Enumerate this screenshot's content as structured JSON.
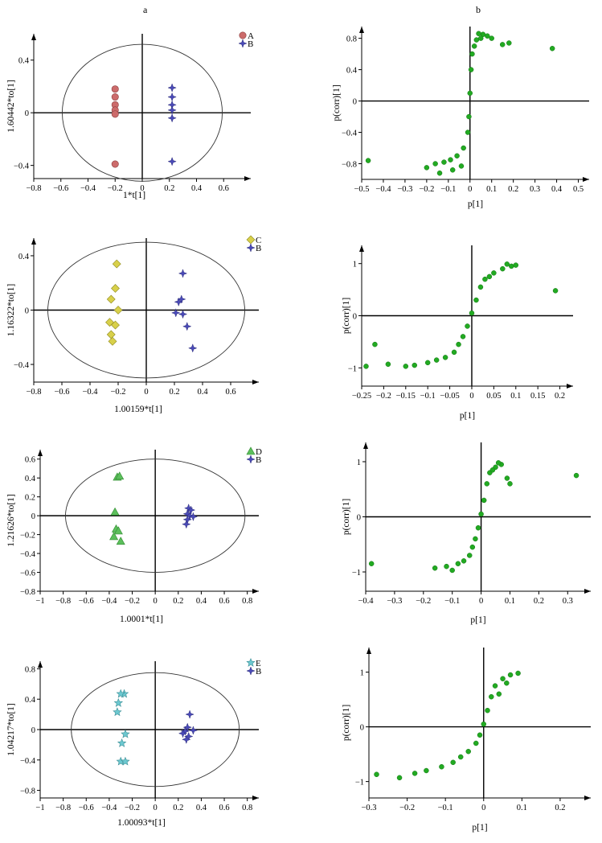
{
  "panel_labels": [
    "a",
    "b"
  ],
  "chart_data": [
    {
      "type": "scatter",
      "kind": "opls-da-score",
      "xlabel": "1*t[1]",
      "ylabel": "1.60442*to[1]",
      "xlim": [
        -0.8,
        0.8
      ],
      "ylim": [
        -0.5,
        0.6
      ],
      "xticks": [
        -0.8,
        -0.6,
        -0.4,
        -0.2,
        0,
        0.2,
        0.4,
        0.6
      ],
      "xticklabels": [
        "−0.8",
        "−0.6",
        "−0.4",
        "−0.2",
        "0",
        "0.2",
        "0.4",
        "0.6"
      ],
      "yticks": [
        -0.4,
        0,
        0.4
      ],
      "yticklabels": [
        "−0.4",
        "0",
        "0.4"
      ],
      "ellipse": {
        "cx": 0,
        "cy": 0,
        "rx": 0.59,
        "ry": 0.52
      },
      "legend_position": "top-right",
      "series": [
        {
          "name": "A",
          "marker": "circle",
          "color": "#cc6b6b",
          "points": [
            [
              -0.2,
              0.18
            ],
            [
              -0.2,
              0.12
            ],
            [
              -0.2,
              0.06
            ],
            [
              -0.2,
              0.02
            ],
            [
              -0.2,
              -0.01
            ],
            [
              -0.2,
              -0.39
            ]
          ]
        },
        {
          "name": "B",
          "marker": "cross",
          "color": "#4a4ab8",
          "points": [
            [
              0.22,
              0.19
            ],
            [
              0.22,
              0.12
            ],
            [
              0.22,
              0.06
            ],
            [
              0.22,
              0.02
            ],
            [
              0.22,
              -0.04
            ],
            [
              0.22,
              -0.37
            ]
          ]
        }
      ]
    },
    {
      "type": "scatter",
      "kind": "s-plot",
      "xlabel": "p[1]",
      "ylabel": "p(corr)[1]",
      "xlim": [
        -0.5,
        0.55
      ],
      "ylim": [
        -1.0,
        0.95
      ],
      "xticks": [
        -0.5,
        -0.4,
        -0.3,
        -0.2,
        -0.1,
        0,
        0.1,
        0.2,
        0.3,
        0.4,
        0.5
      ],
      "xticklabels": [
        "−0.5",
        "−0.4",
        "−0.3",
        "−0.2",
        "−0.1",
        "0",
        "0.1",
        "0.2",
        "0.3",
        "0.4",
        "0.5"
      ],
      "yticks": [
        -0.8,
        -0.4,
        0,
        0.4,
        0.8
      ],
      "yticklabels": [
        "−0.8",
        "−0.4",
        "0",
        "0.4",
        "0.8"
      ],
      "series": [
        {
          "marker": "dot",
          "color": "#22aa22",
          "points": [
            [
              -0.47,
              -0.76
            ],
            [
              0.38,
              0.67
            ],
            [
              0.18,
              0.74
            ],
            [
              0.15,
              0.72
            ],
            [
              0.1,
              0.8
            ],
            [
              0.08,
              0.83
            ],
            [
              0.06,
              0.85
            ],
            [
              0.05,
              0.8
            ],
            [
              0.04,
              0.86
            ],
            [
              0.03,
              0.78
            ],
            [
              0.02,
              0.7
            ],
            [
              0.01,
              0.6
            ],
            [
              0.005,
              0.4
            ],
            [
              0,
              0.1
            ],
            [
              -0.005,
              -0.2
            ],
            [
              -0.01,
              -0.4
            ],
            [
              -0.03,
              -0.6
            ],
            [
              -0.06,
              -0.7
            ],
            [
              -0.09,
              -0.75
            ],
            [
              -0.12,
              -0.78
            ],
            [
              -0.16,
              -0.8
            ],
            [
              -0.2,
              -0.85
            ],
            [
              -0.14,
              -0.92
            ],
            [
              -0.08,
              -0.88
            ],
            [
              -0.04,
              -0.83
            ]
          ]
        }
      ]
    },
    {
      "type": "scatter",
      "kind": "opls-da-score",
      "xlabel": "1.00159*t[1]",
      "ylabel": "1.16322*to[1]",
      "xlim": [
        -0.8,
        0.8
      ],
      "ylim": [
        -0.53,
        0.53
      ],
      "xticks": [
        -0.8,
        -0.6,
        -0.4,
        -0.2,
        0,
        0.2,
        0.4,
        0.6
      ],
      "xticklabels": [
        "−0.8",
        "−0.6",
        "−0.4",
        "−0.2",
        "0",
        "0.2",
        "0.4",
        "0.6"
      ],
      "yticks": [
        -0.4,
        0,
        0.4
      ],
      "yticklabels": [
        "−0.4",
        "0",
        "0.4"
      ],
      "ellipse": {
        "cx": 0,
        "cy": 0,
        "rx": 0.7,
        "ry": 0.5
      },
      "legend_position": "top-right",
      "series": [
        {
          "name": "C",
          "marker": "diamond",
          "color": "#d8d04a",
          "points": [
            [
              -0.21,
              0.34
            ],
            [
              -0.22,
              0.16
            ],
            [
              -0.25,
              0.08
            ],
            [
              -0.2,
              0.0
            ],
            [
              -0.26,
              -0.09
            ],
            [
              -0.22,
              -0.11
            ],
            [
              -0.25,
              -0.18
            ],
            [
              -0.24,
              -0.23
            ]
          ]
        },
        {
          "name": "B",
          "marker": "cross",
          "color": "#4a4ab8",
          "points": [
            [
              0.26,
              0.27
            ],
            [
              0.25,
              0.08
            ],
            [
              0.23,
              0.06
            ],
            [
              0.21,
              -0.02
            ],
            [
              0.26,
              -0.03
            ],
            [
              0.29,
              -0.12
            ],
            [
              0.33,
              -0.28
            ]
          ]
        }
      ]
    },
    {
      "type": "scatter",
      "kind": "s-plot",
      "xlabel": "p[1]",
      "ylabel": "p(corr)[1]",
      "xlim": [
        -0.25,
        0.23
      ],
      "ylim": [
        -1.35,
        1.35
      ],
      "xticks": [
        -0.25,
        -0.2,
        -0.15,
        -0.1,
        -0.05,
        0,
        0.05,
        0.1,
        0.15,
        0.2
      ],
      "xticklabels": [
        "−0.25",
        "−0.2",
        "−0.15",
        "−0.1",
        "−0.05",
        "0",
        "0.05",
        "0.1",
        "0.15",
        "0.2"
      ],
      "yticks": [
        -1,
        0,
        1
      ],
      "yticklabels": [
        "−1",
        "0",
        "1"
      ],
      "series": [
        {
          "marker": "dot",
          "color": "#22aa22",
          "points": [
            [
              -0.24,
              -0.97
            ],
            [
              -0.22,
              -0.55
            ],
            [
              -0.19,
              -0.93
            ],
            [
              -0.15,
              -0.97
            ],
            [
              -0.13,
              -0.95
            ],
            [
              -0.1,
              -0.9
            ],
            [
              -0.08,
              -0.85
            ],
            [
              -0.06,
              -0.8
            ],
            [
              -0.04,
              -0.7
            ],
            [
              -0.03,
              -0.55
            ],
            [
              -0.02,
              -0.4
            ],
            [
              -0.01,
              -0.2
            ],
            [
              0,
              0.05
            ],
            [
              0.01,
              0.3
            ],
            [
              0.02,
              0.55
            ],
            [
              0.03,
              0.7
            ],
            [
              0.05,
              0.82
            ],
            [
              0.07,
              0.9
            ],
            [
              0.09,
              0.95
            ],
            [
              0.1,
              0.97
            ],
            [
              0.08,
              0.99
            ],
            [
              0.04,
              0.75
            ],
            [
              0.19,
              0.48
            ]
          ]
        }
      ]
    },
    {
      "type": "scatter",
      "kind": "opls-da-score",
      "xlabel": "1.0001*t[1]",
      "ylabel": "1.21626*to[1]",
      "xlim": [
        -1.0,
        0.9
      ],
      "ylim": [
        -0.8,
        0.7
      ],
      "xticks": [
        -1,
        -0.8,
        -0.6,
        -0.4,
        -0.2,
        0,
        0.2,
        0.4,
        0.6,
        0.8
      ],
      "xticklabels": [
        "−1",
        "−0.8",
        "−0.6",
        "−0.4",
        "−0.2",
        "0",
        "0.2",
        "0.4",
        "0.6",
        "0.8"
      ],
      "yticks": [
        -0.8,
        -0.6,
        -0.4,
        -0.2,
        0,
        0.2,
        0.4,
        0.6
      ],
      "yticklabels": [
        "−0.8",
        "−0.6",
        "−0.4",
        "−0.2",
        "0",
        "0.2",
        "0.4",
        "0.6"
      ],
      "ellipse": {
        "cx": 0,
        "cy": 0,
        "rx": 0.78,
        "ry": 0.6
      },
      "legend_position": "top-right",
      "series": [
        {
          "name": "D",
          "marker": "triangle",
          "color": "#5cbf5c",
          "points": [
            [
              -0.33,
              0.41
            ],
            [
              -0.31,
              0.42
            ],
            [
              -0.35,
              0.04
            ],
            [
              -0.34,
              -0.14
            ],
            [
              -0.32,
              -0.16
            ],
            [
              -0.36,
              -0.22
            ],
            [
              -0.3,
              -0.27
            ]
          ]
        },
        {
          "name": "B",
          "marker": "cross",
          "color": "#4a4ab8",
          "points": [
            [
              0.29,
              0.08
            ],
            [
              0.31,
              0.06
            ],
            [
              0.28,
              0.02
            ],
            [
              0.3,
              0.0
            ],
            [
              0.33,
              -0.01
            ],
            [
              0.28,
              -0.04
            ],
            [
              0.27,
              -0.09
            ]
          ]
        }
      ]
    },
    {
      "type": "scatter",
      "kind": "s-plot",
      "xlabel": "p[1]",
      "ylabel": "p(corr)[1]",
      "xlim": [
        -0.4,
        0.38
      ],
      "ylim": [
        -1.35,
        1.35
      ],
      "xticks": [
        -0.4,
        -0.3,
        -0.2,
        -0.1,
        0,
        0.1,
        0.2,
        0.3
      ],
      "xticklabels": [
        "−0.4",
        "−0.3",
        "−0.2",
        "−0.1",
        "0",
        "0.1",
        "0.2",
        "0.3"
      ],
      "yticks": [
        -1,
        0,
        1
      ],
      "yticklabels": [
        "−1",
        "0",
        "1"
      ],
      "series": [
        {
          "marker": "dot",
          "color": "#22aa22",
          "points": [
            [
              -0.38,
              -0.85
            ],
            [
              -0.16,
              -0.93
            ],
            [
              -0.12,
              -0.9
            ],
            [
              -0.1,
              -0.97
            ],
            [
              -0.08,
              -0.85
            ],
            [
              -0.06,
              -0.8
            ],
            [
              -0.04,
              -0.7
            ],
            [
              -0.03,
              -0.55
            ],
            [
              -0.02,
              -0.4
            ],
            [
              -0.01,
              -0.2
            ],
            [
              0,
              0.05
            ],
            [
              0.01,
              0.3
            ],
            [
              0.02,
              0.6
            ],
            [
              0.03,
              0.8
            ],
            [
              0.05,
              0.9
            ],
            [
              0.07,
              0.95
            ],
            [
              0.09,
              0.7
            ],
            [
              0.1,
              0.6
            ],
            [
              0.06,
              0.98
            ],
            [
              0.04,
              0.85
            ],
            [
              0.33,
              0.75
            ]
          ]
        }
      ]
    },
    {
      "type": "scatter",
      "kind": "opls-da-score",
      "xlabel": "1.00093*t[1]",
      "ylabel": "1.04217*to[1]",
      "xlim": [
        -1.0,
        0.9
      ],
      "ylim": [
        -0.9,
        0.9
      ],
      "xticks": [
        -1,
        -0.8,
        -0.6,
        -0.4,
        -0.2,
        0,
        0.2,
        0.4,
        0.6,
        0.8
      ],
      "xticklabels": [
        "−1",
        "−0.8",
        "−0.6",
        "−0.4",
        "−0.2",
        "0",
        "0.2",
        "0.4",
        "0.6",
        "0.8"
      ],
      "yticks": [
        -0.8,
        -0.4,
        0,
        0.4,
        0.8
      ],
      "yticklabels": [
        "−0.8",
        "−0.4",
        "0",
        "0.4",
        "0.8"
      ],
      "ellipse": {
        "cx": 0,
        "cy": 0,
        "rx": 0.73,
        "ry": 0.75
      },
      "legend_position": "top-right",
      "series": [
        {
          "name": "E",
          "marker": "star",
          "color": "#6cc8d0",
          "points": [
            [
              -0.27,
              0.47
            ],
            [
              -0.3,
              0.47
            ],
            [
              -0.32,
              0.35
            ],
            [
              -0.33,
              0.23
            ],
            [
              -0.26,
              -0.06
            ],
            [
              -0.29,
              -0.18
            ],
            [
              -0.3,
              -0.42
            ],
            [
              -0.26,
              -0.42
            ]
          ]
        },
        {
          "name": "B",
          "marker": "cross",
          "color": "#4a4ab8",
          "points": [
            [
              0.3,
              0.2
            ],
            [
              0.28,
              0.03
            ],
            [
              0.26,
              -0.02
            ],
            [
              0.33,
              -0.01
            ],
            [
              0.24,
              -0.05
            ],
            [
              0.29,
              -0.09
            ],
            [
              0.27,
              -0.13
            ]
          ]
        }
      ]
    },
    {
      "type": "scatter",
      "kind": "s-plot",
      "xlabel": "p[1]",
      "ylabel": "p(corr)[1]",
      "xlim": [
        -0.3,
        0.28
      ],
      "ylim": [
        -1.3,
        1.45
      ],
      "xticks": [
        -0.3,
        -0.2,
        -0.1,
        0,
        0.1,
        0.2
      ],
      "xticklabels": [
        "−0.3",
        "−0.2",
        "−0.1",
        "0",
        "0.1",
        "0.2"
      ],
      "yticks": [
        -1,
        0,
        1
      ],
      "yticklabels": [
        "−1",
        "0",
        "1"
      ],
      "series": [
        {
          "marker": "dot",
          "color": "#22aa22",
          "points": [
            [
              -0.28,
              -0.87
            ],
            [
              -0.22,
              -0.93
            ],
            [
              -0.18,
              -0.85
            ],
            [
              -0.15,
              -0.8
            ],
            [
              -0.11,
              -0.73
            ],
            [
              -0.08,
              -0.65
            ],
            [
              -0.06,
              -0.55
            ],
            [
              -0.04,
              -0.45
            ],
            [
              -0.02,
              -0.3
            ],
            [
              -0.01,
              -0.15
            ],
            [
              0,
              0.05
            ],
            [
              0.01,
              0.3
            ],
            [
              0.02,
              0.55
            ],
            [
              0.03,
              0.75
            ],
            [
              0.05,
              0.88
            ],
            [
              0.07,
              0.95
            ],
            [
              0.09,
              0.98
            ],
            [
              0.04,
              0.6
            ],
            [
              0.06,
              0.8
            ]
          ]
        }
      ]
    }
  ]
}
